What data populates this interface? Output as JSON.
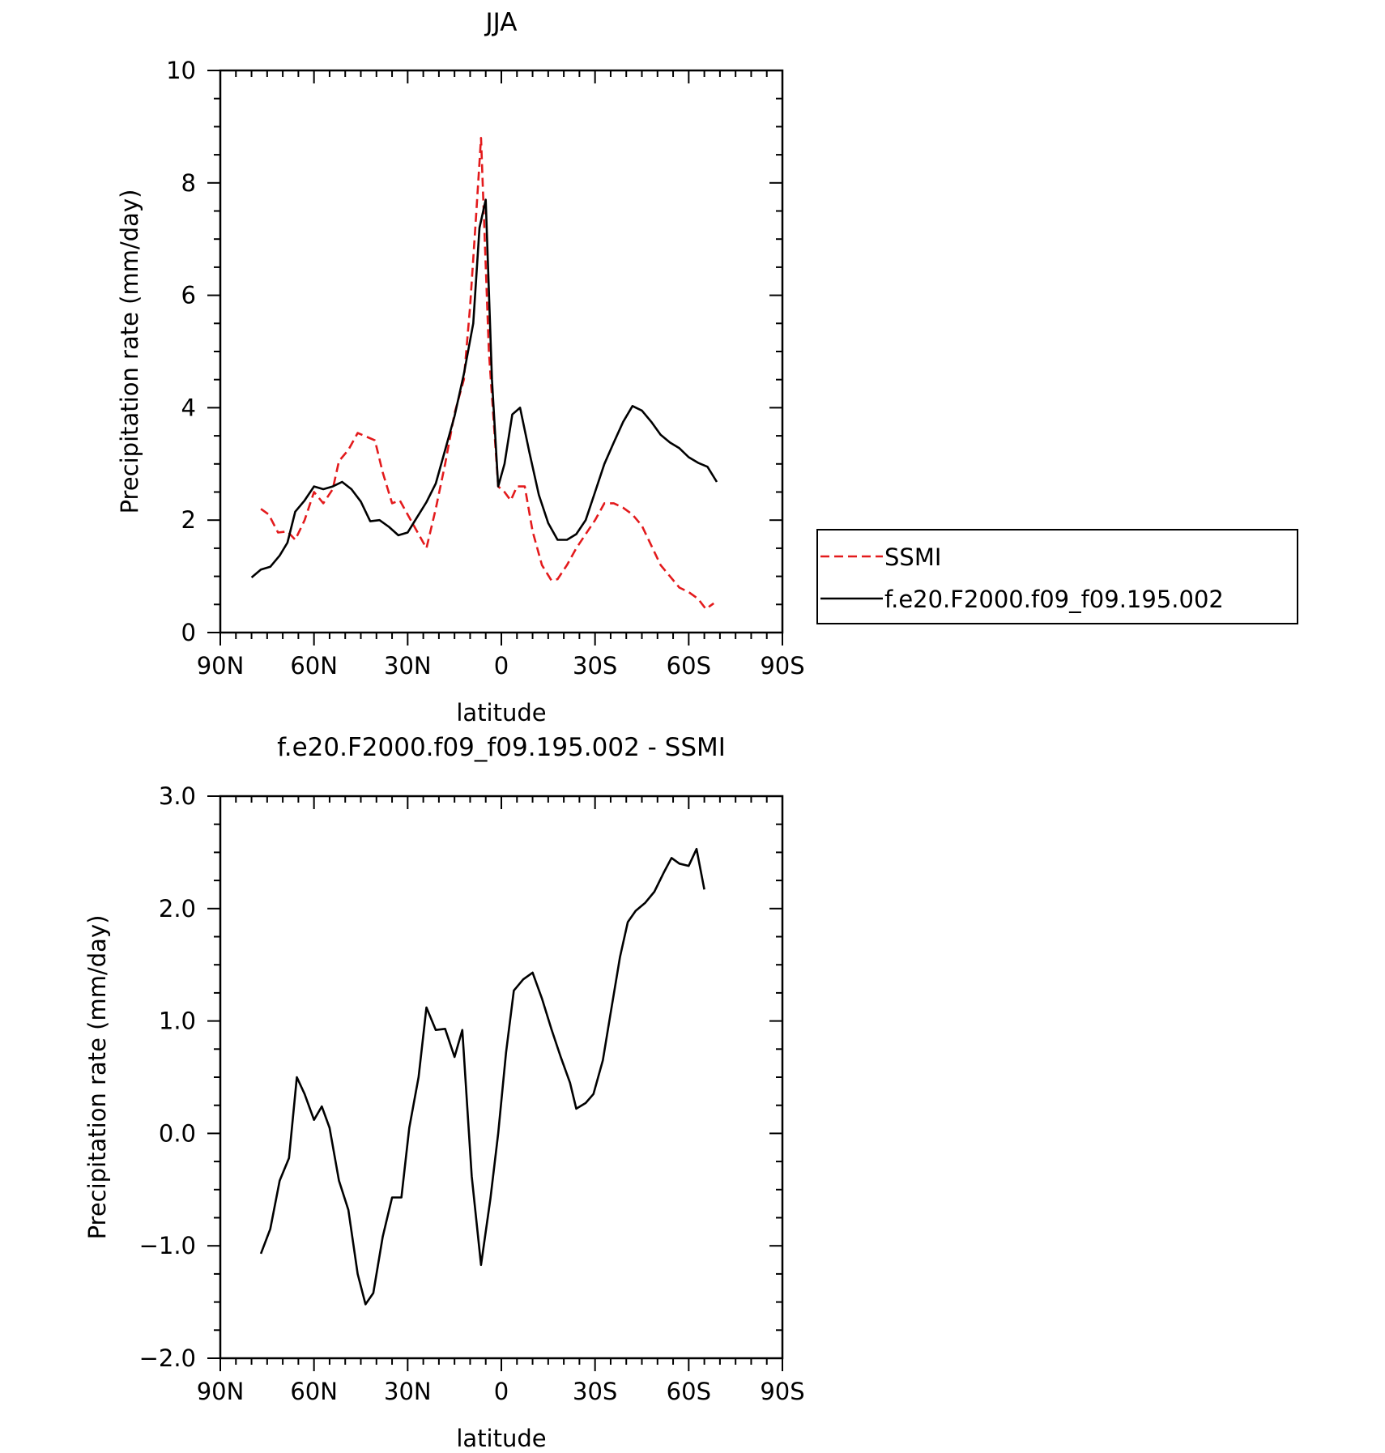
{
  "chart_data": [
    {
      "type": "line",
      "title": "JJA",
      "xlabel": "latitude",
      "ylabel": "Precipitation rate (mm/day)",
      "xlim": [
        -90,
        90
      ],
      "ylim": [
        0,
        10
      ],
      "x_ticks": [
        -90,
        -60,
        -30,
        0,
        30,
        60,
        90
      ],
      "x_tick_labels": [
        "90N",
        "60N",
        "30N",
        "0",
        "30S",
        "60S",
        "90S"
      ],
      "y_ticks": [
        0,
        2,
        4,
        6,
        8,
        10
      ],
      "y_tick_labels": [
        "0",
        "2",
        "4",
        "6",
        "8",
        "10"
      ],
      "grid": false,
      "legend": {
        "placement": "right",
        "entries": [
          {
            "label": "SSMI",
            "color": "#e31a1c",
            "dash": "dashed"
          },
          {
            "label": "f.e20.F2000.f09_f09.195.002",
            "color": "#000000",
            "dash": "solid"
          }
        ]
      },
      "series": [
        {
          "name": "SSMI",
          "color": "#e31a1c",
          "dash": "dashed",
          "points": [
            [
              -77,
              2.2
            ],
            [
              -74.5,
              2.1
            ],
            [
              -71.5,
              1.78
            ],
            [
              -68.5,
              1.8
            ],
            [
              -66,
              1.65
            ],
            [
              -63,
              2.0
            ],
            [
              -60,
              2.5
            ],
            [
              -57,
              2.3
            ],
            [
              -54,
              2.55
            ],
            [
              -52,
              3.05
            ],
            [
              -49,
              3.25
            ],
            [
              -46,
              3.55
            ],
            [
              -43,
              3.48
            ],
            [
              -40.5,
              3.42
            ],
            [
              -38,
              2.85
            ],
            [
              -35,
              2.3
            ],
            [
              -32.5,
              2.35
            ],
            [
              -30,
              2.1
            ],
            [
              -27,
              1.8
            ],
            [
              -24,
              1.5
            ],
            [
              -21,
              2.2
            ],
            [
              -18,
              3.0
            ],
            [
              -15,
              3.9
            ],
            [
              -12,
              4.5
            ],
            [
              -10,
              5.8
            ],
            [
              -8,
              7.5
            ],
            [
              -6.5,
              8.8
            ],
            [
              -4,
              5.0
            ],
            [
              -1,
              2.6
            ],
            [
              1,
              2.5
            ],
            [
              3,
              2.35
            ],
            [
              5,
              2.6
            ],
            [
              7.5,
              2.6
            ],
            [
              10,
              1.8
            ],
            [
              13,
              1.2
            ],
            [
              16,
              0.93
            ],
            [
              18,
              0.95
            ],
            [
              21,
              1.2
            ],
            [
              24,
              1.5
            ],
            [
              27,
              1.75
            ],
            [
              30,
              2.0
            ],
            [
              33,
              2.3
            ],
            [
              36,
              2.3
            ],
            [
              39,
              2.22
            ],
            [
              42,
              2.1
            ],
            [
              45,
              1.9
            ],
            [
              48,
              1.55
            ],
            [
              51,
              1.2
            ],
            [
              54,
              1.0
            ],
            [
              57,
              0.8
            ],
            [
              60,
              0.72
            ],
            [
              63,
              0.6
            ],
            [
              65.5,
              0.42
            ],
            [
              68,
              0.52
            ]
          ]
        },
        {
          "name": "f.e20.F2000.f09_f09.195.002",
          "color": "#000000",
          "dash": "solid",
          "points": [
            [
              -80,
              0.98
            ],
            [
              -77,
              1.12
            ],
            [
              -74,
              1.17
            ],
            [
              -71,
              1.37
            ],
            [
              -68.5,
              1.6
            ],
            [
              -66,
              2.15
            ],
            [
              -63,
              2.35
            ],
            [
              -60,
              2.6
            ],
            [
              -57,
              2.55
            ],
            [
              -54,
              2.6
            ],
            [
              -51,
              2.68
            ],
            [
              -48,
              2.55
            ],
            [
              -45,
              2.33
            ],
            [
              -42,
              1.98
            ],
            [
              -39,
              2.0
            ],
            [
              -36,
              1.88
            ],
            [
              -33,
              1.73
            ],
            [
              -30,
              1.78
            ],
            [
              -27,
              2.05
            ],
            [
              -24,
              2.32
            ],
            [
              -21,
              2.65
            ],
            [
              -18,
              3.25
            ],
            [
              -15,
              3.85
            ],
            [
              -12,
              4.6
            ],
            [
              -9,
              5.5
            ],
            [
              -7,
              7.2
            ],
            [
              -5,
              7.7
            ],
            [
              -3,
              4.5
            ],
            [
              -1,
              2.6
            ],
            [
              1,
              3.0
            ],
            [
              3.5,
              3.88
            ],
            [
              6,
              4.0
            ],
            [
              9,
              3.2
            ],
            [
              12,
              2.45
            ],
            [
              15,
              1.95
            ],
            [
              18,
              1.65
            ],
            [
              21,
              1.65
            ],
            [
              24,
              1.75
            ],
            [
              27,
              2.0
            ],
            [
              30,
              2.5
            ],
            [
              33,
              3.0
            ],
            [
              36,
              3.38
            ],
            [
              39,
              3.75
            ],
            [
              42,
              4.03
            ],
            [
              45,
              3.95
            ],
            [
              48,
              3.75
            ],
            [
              51,
              3.52
            ],
            [
              54,
              3.38
            ],
            [
              57,
              3.28
            ],
            [
              60,
              3.12
            ],
            [
              63,
              3.02
            ],
            [
              66,
              2.95
            ],
            [
              69,
              2.68
            ]
          ]
        }
      ]
    },
    {
      "type": "line",
      "title": "f.e20.F2000.f09_f09.195.002 - SSMI",
      "xlabel": "latitude",
      "ylabel": "Precipitation rate (mm/day)",
      "xlim": [
        -90,
        90
      ],
      "ylim": [
        -2.0,
        3.0
      ],
      "x_ticks": [
        -90,
        -60,
        -30,
        0,
        30,
        60,
        90
      ],
      "x_tick_labels": [
        "90N",
        "60N",
        "30N",
        "0",
        "30S",
        "60S",
        "90S"
      ],
      "y_ticks": [
        -2.0,
        -1.0,
        0.0,
        1.0,
        2.0,
        3.0
      ],
      "y_tick_labels": [
        "−2.0",
        "−1.0",
        "0.0",
        "1.0",
        "2.0",
        "3.0"
      ],
      "grid": false,
      "series": [
        {
          "color": "#000000",
          "dash": "solid",
          "points": [
            [
              -77,
              -1.07
            ],
            [
              -74,
              -0.85
            ],
            [
              -71,
              -0.42
            ],
            [
              -68,
              -0.22
            ],
            [
              -65.5,
              0.5
            ],
            [
              -63,
              0.35
            ],
            [
              -60,
              0.12
            ],
            [
              -57.5,
              0.24
            ],
            [
              -55,
              0.05
            ],
            [
              -52,
              -0.42
            ],
            [
              -49,
              -0.68
            ],
            [
              -46,
              -1.25
            ],
            [
              -43.5,
              -1.52
            ],
            [
              -41,
              -1.42
            ],
            [
              -38,
              -0.92
            ],
            [
              -35,
              -0.57
            ],
            [
              -32,
              -0.57
            ],
            [
              -29.5,
              0.05
            ],
            [
              -26.5,
              0.5
            ],
            [
              -24,
              1.12
            ],
            [
              -21,
              0.92
            ],
            [
              -18,
              0.93
            ],
            [
              -15,
              0.68
            ],
            [
              -12.5,
              0.92
            ],
            [
              -9.5,
              -0.38
            ],
            [
              -6.5,
              -1.17
            ],
            [
              -3.5,
              -0.58
            ],
            [
              -1,
              0.0
            ],
            [
              1.5,
              0.72
            ],
            [
              4,
              1.27
            ],
            [
              7,
              1.37
            ],
            [
              10,
              1.43
            ],
            [
              13,
              1.2
            ],
            [
              16,
              0.93
            ],
            [
              19,
              0.68
            ],
            [
              22,
              0.45
            ],
            [
              24,
              0.22
            ],
            [
              27,
              0.27
            ],
            [
              29.5,
              0.35
            ],
            [
              32.5,
              0.65
            ],
            [
              35,
              1.07
            ],
            [
              38,
              1.57
            ],
            [
              40.5,
              1.88
            ],
            [
              43,
              1.98
            ],
            [
              46,
              2.05
            ],
            [
              49,
              2.15
            ],
            [
              52,
              2.32
            ],
            [
              54.5,
              2.45
            ],
            [
              57,
              2.4
            ],
            [
              60,
              2.38
            ],
            [
              62.5,
              2.53
            ],
            [
              65,
              2.17
            ]
          ]
        }
      ]
    }
  ]
}
